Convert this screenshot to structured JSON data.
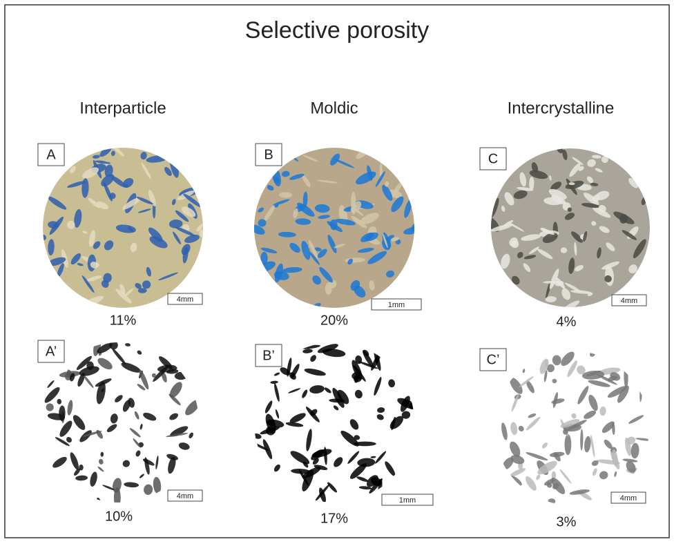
{
  "title": "Selective porosity",
  "columns": [
    {
      "heading": "Interparticle",
      "panels": [
        {
          "label": "A",
          "scale": "4mm",
          "porosity": "11%"
        },
        {
          "label": "A’",
          "scale": "4mm",
          "porosity": "10%"
        }
      ]
    },
    {
      "heading": "Moldic",
      "panels": [
        {
          "label": "B",
          "scale": "1mm",
          "porosity": "20%"
        },
        {
          "label": "B’",
          "scale": "1mm",
          "porosity": "17%"
        }
      ]
    },
    {
      "heading": "Intercrystalline",
      "panels": [
        {
          "label": "C",
          "scale": "4mm",
          "porosity": "4%"
        },
        {
          "label": "C’",
          "scale": "4mm",
          "porosity": "3%"
        }
      ]
    }
  ]
}
